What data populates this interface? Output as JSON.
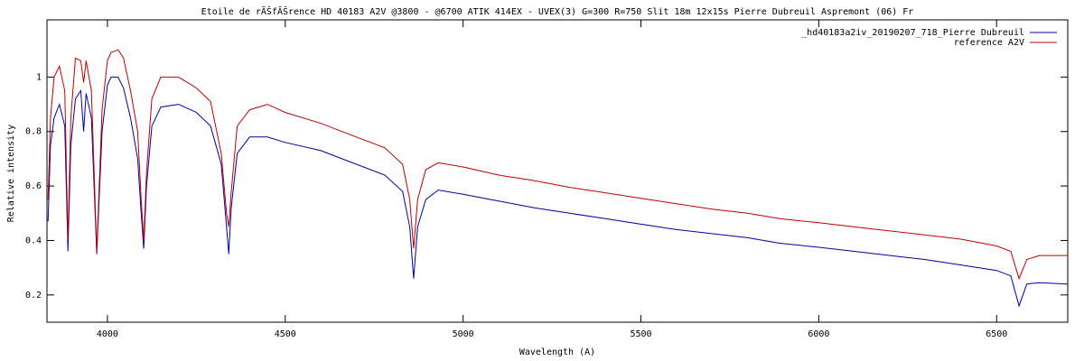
{
  "chart_data": {
    "type": "line",
    "title": "Etoile de rÃŠfÃŠrence HD 40183  A2V  @3800 - @6700    ATIK 414EX - UVEX(3)  G=300  R=750  Slit 18m    12x15s    Pierre Dubreuil  Aspremont (06) Fr",
    "x_label": "Wavelength (A)",
    "y_label": "Relative intensity",
    "legend": "top-right",
    "x": [
      3833,
      3840,
      3850,
      3865,
      3880,
      3889,
      3897,
      3910,
      3925,
      3933,
      3940,
      3955,
      3970,
      3985,
      4000,
      4010,
      4030,
      4045,
      4065,
      4085,
      4095,
      4102,
      4110,
      4125,
      4150,
      4200,
      4250,
      4290,
      4320,
      4335,
      4341,
      4348,
      4365,
      4400,
      4450,
      4500,
      4600,
      4700,
      4780,
      4830,
      4850,
      4861,
      4872,
      4895,
      4930,
      5000,
      5100,
      5200,
      5300,
      5400,
      5500,
      5600,
      5700,
      5800,
      5890,
      6000,
      6100,
      6200,
      6300,
      6400,
      6500,
      6540,
      6563,
      6585,
      6620,
      6700
    ],
    "series": [
      {
        "name": "_hd40183a2iv_20190207_718_Pierre Dubreuil",
        "color": "#0000a0",
        "values": [
          0.47,
          0.75,
          0.85,
          0.9,
          0.82,
          0.36,
          0.75,
          0.92,
          0.95,
          0.8,
          0.94,
          0.85,
          0.35,
          0.8,
          0.97,
          1.0,
          1.0,
          0.96,
          0.85,
          0.7,
          0.5,
          0.37,
          0.6,
          0.82,
          0.89,
          0.9,
          0.87,
          0.82,
          0.68,
          0.45,
          0.35,
          0.52,
          0.72,
          0.78,
          0.78,
          0.76,
          0.73,
          0.68,
          0.64,
          0.58,
          0.45,
          0.26,
          0.45,
          0.55,
          0.585,
          0.57,
          0.545,
          0.52,
          0.5,
          0.48,
          0.46,
          0.44,
          0.425,
          0.41,
          0.39,
          0.375,
          0.36,
          0.345,
          0.33,
          0.31,
          0.29,
          0.27,
          0.16,
          0.24,
          0.245,
          0.24
        ]
      },
      {
        "name": "reference A2V",
        "color": "#c00000",
        "values": [
          0.55,
          0.85,
          1.0,
          1.04,
          0.95,
          0.4,
          0.85,
          1.07,
          1.06,
          0.98,
          1.06,
          0.95,
          0.36,
          0.88,
          1.06,
          1.09,
          1.1,
          1.07,
          0.95,
          0.8,
          0.55,
          0.4,
          0.65,
          0.92,
          1.0,
          1.0,
          0.96,
          0.91,
          0.72,
          0.5,
          0.45,
          0.58,
          0.82,
          0.88,
          0.9,
          0.87,
          0.83,
          0.78,
          0.74,
          0.68,
          0.55,
          0.37,
          0.55,
          0.66,
          0.685,
          0.67,
          0.64,
          0.62,
          0.595,
          0.575,
          0.555,
          0.535,
          0.515,
          0.5,
          0.48,
          0.465,
          0.45,
          0.435,
          0.42,
          0.405,
          0.38,
          0.36,
          0.26,
          0.33,
          0.345,
          0.345
        ]
      }
    ],
    "xlim": [
      3830,
      6700
    ],
    "xticks": [
      4000,
      4500,
      5000,
      5500,
      6000,
      6500
    ],
    "ylim": [
      0.1,
      1.21
    ],
    "yticks": [
      0.2,
      0.4,
      0.6,
      0.8,
      1
    ]
  }
}
